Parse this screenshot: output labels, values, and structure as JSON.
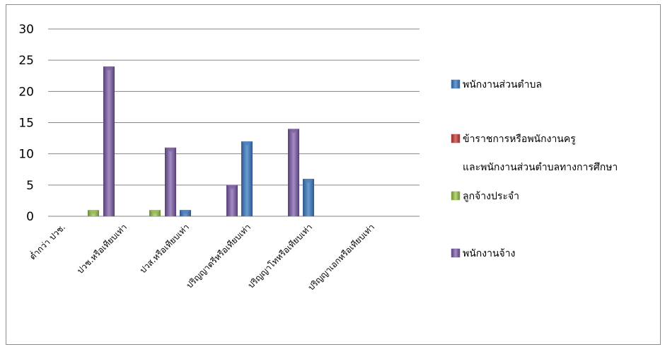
{
  "chart_data": {
    "type": "bar",
    "categories": [
      "ต่ำกว่า ปวช.",
      "ปวช.หรือเทียบเท่า",
      "ปวส.หรือเทียบเท่า",
      "ปริญญาตรีหรือเทียบเท่า",
      "ปริญญาโทหรือเทียบเท่า",
      "ปริญญาเอกหรือเทียบเท่า"
    ],
    "series": [
      {
        "name": "พนักงานส่วนตำบล",
        "values": [
          0,
          0,
          1,
          12,
          6,
          0
        ],
        "color": "#4f81bd"
      },
      {
        "name_lines": [
          "ข้าราชการหรือพนักงานครู",
          "และพนักงานส่วนตำบลทางการศึกษา"
        ],
        "values": [
          0,
          0,
          0,
          0,
          0,
          0
        ],
        "color": "#c0504d"
      },
      {
        "name": "ลูกจ้างประจำ",
        "values": [
          1,
          1,
          0,
          0,
          0,
          0
        ],
        "color": "#9bbb59"
      },
      {
        "name": "พนักงานจ้าง",
        "values": [
          24,
          11,
          5,
          14,
          0,
          0
        ],
        "color": "#8064a2"
      }
    ],
    "ylim": [
      0,
      30
    ],
    "yticks": [
      0,
      5,
      10,
      15,
      20,
      25,
      30
    ],
    "grid": true,
    "legend": "right"
  }
}
